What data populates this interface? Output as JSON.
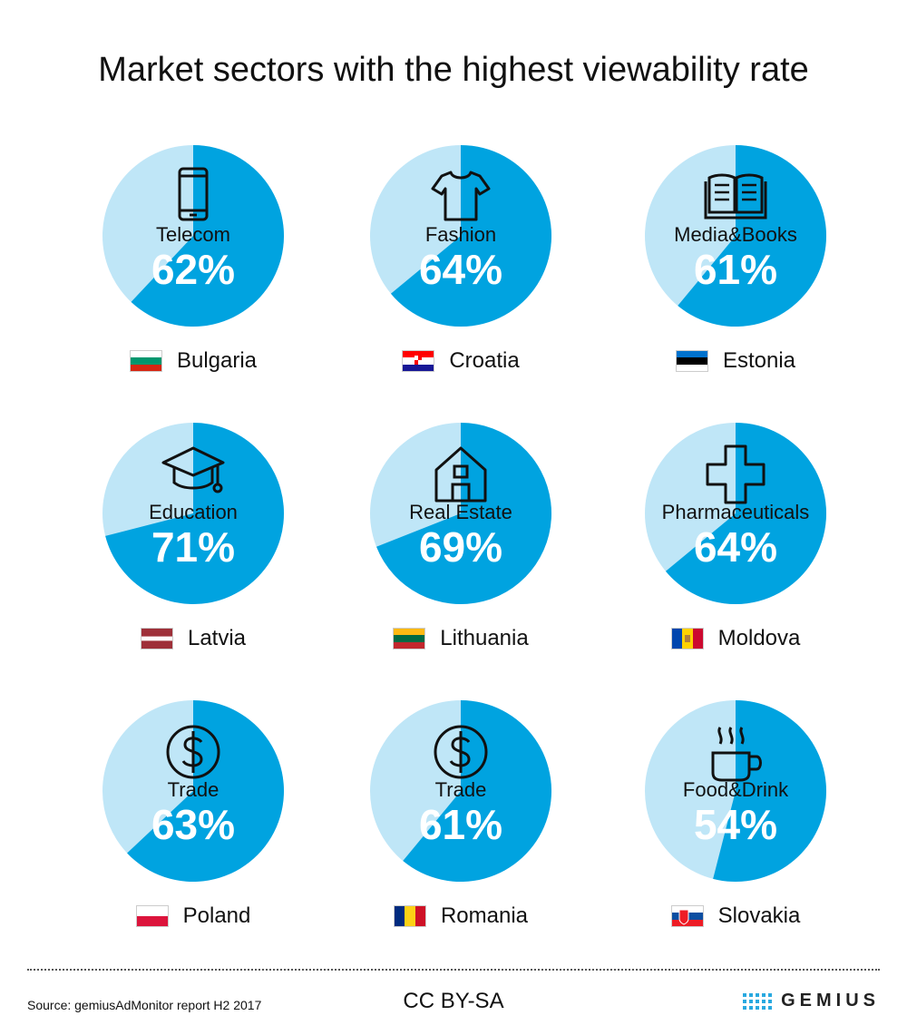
{
  "title": "Market sectors with the highest viewability rate",
  "colors": {
    "viewable": "#00a3e0",
    "remainder": "#bfe6f7",
    "percent_text": "#ffffff"
  },
  "chart_data": {
    "type": "pie",
    "title": "Market sectors with the highest viewability rate",
    "items": [
      {
        "sector": "Telecom",
        "percent_label": "62%",
        "value": 62,
        "country": "Bulgaria",
        "icon": "smartphone-icon",
        "flag": "bulgaria"
      },
      {
        "sector": "Fashion",
        "percent_label": "64%",
        "value": 64,
        "country": "Croatia",
        "icon": "tshirt-icon",
        "flag": "croatia"
      },
      {
        "sector": "Media&Books",
        "percent_label": "61%",
        "value": 61,
        "country": "Estonia",
        "icon": "open-book-icon",
        "flag": "estonia"
      },
      {
        "sector": "Education",
        "percent_label": "71%",
        "value": 71,
        "country": "Latvia",
        "icon": "graduation-cap-icon",
        "flag": "latvia"
      },
      {
        "sector": "Real Estate",
        "percent_label": "69%",
        "value": 69,
        "country": "Lithuania",
        "icon": "house-icon",
        "flag": "lithuania"
      },
      {
        "sector": "Pharmaceuticals",
        "percent_label": "64%",
        "value": 64,
        "country": "Moldova",
        "icon": "medical-cross-icon",
        "flag": "moldova"
      },
      {
        "sector": "Trade",
        "percent_label": "63%",
        "value": 63,
        "country": "Poland",
        "icon": "dollar-coin-icon",
        "flag": "poland"
      },
      {
        "sector": "Trade",
        "percent_label": "61%",
        "value": 61,
        "country": "Romania",
        "icon": "dollar-coin-icon",
        "flag": "romania"
      },
      {
        "sector": "Food&Drink",
        "percent_label": "54%",
        "value": 54,
        "country": "Slovakia",
        "icon": "hot-cup-icon",
        "flag": "slovakia"
      }
    ]
  },
  "footer": {
    "source": "Source: gemiusAdMonitor report H2 2017",
    "license": "CC BY-SA",
    "logo_text": "GEMIUS"
  }
}
